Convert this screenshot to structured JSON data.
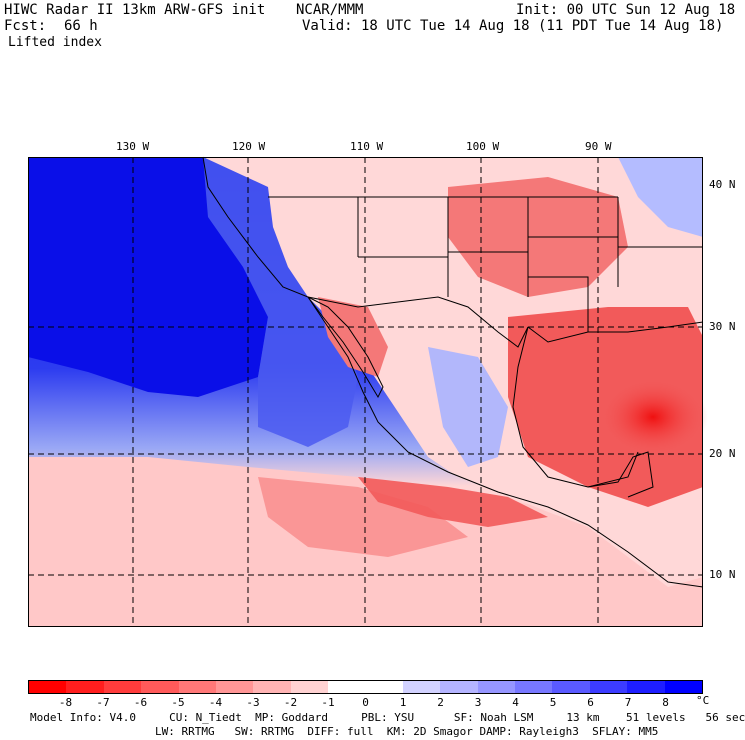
{
  "header": {
    "title": "HIWC Radar II 13km ARW-GFS init",
    "org": "NCAR/MMM",
    "init": "Init: 00 UTC Sun 12 Aug 18",
    "fcst_label": "Fcst:",
    "fcst_value": "66 h",
    "valid": "Valid: 18 UTC Tue 14 Aug 18 (11 PDT Tue 14 Aug 18)",
    "field": "Lifted index"
  },
  "map": {
    "lon_labels": [
      "130 W",
      "120 W",
      "110 W",
      "100 W",
      "90 W"
    ],
    "lat_labels": [
      "40 N",
      "30 N",
      "20 N",
      "10 N"
    ],
    "ocean_color": "#0a1ee6",
    "land_color": "#e8383a"
  },
  "colorbar": {
    "colors": [
      "#ff0000",
      "#ff1e1e",
      "#ff3c3c",
      "#ff5a5a",
      "#ff7878",
      "#ff9696",
      "#ffb4b4",
      "#ffd2d2",
      "#ffffff",
      "#ffffff",
      "#d2d2ff",
      "#b4b4ff",
      "#9696ff",
      "#7878ff",
      "#5a5aff",
      "#3c3cff",
      "#1e1eff",
      "#0000ff"
    ],
    "ticks": [
      "-8",
      "-7",
      "-6",
      "-5",
      "-4",
      "-3",
      "-2",
      "-1",
      "0",
      "1",
      "2",
      "3",
      "4",
      "5",
      "6",
      "7",
      "8"
    ],
    "unit": "°C"
  },
  "model_info": {
    "line1": "Model Info: V4.0     CU: N_Tiedt  MP: Goddard     PBL: YSU      SF: Noah LSM     13 km    51 levels   56 sec",
    "line2": "LW: RRTMG   SW: RRTMG  DIFF: full  KM: 2D Smagor DAMP: Rayleigh3  SFLAY: MM5"
  }
}
